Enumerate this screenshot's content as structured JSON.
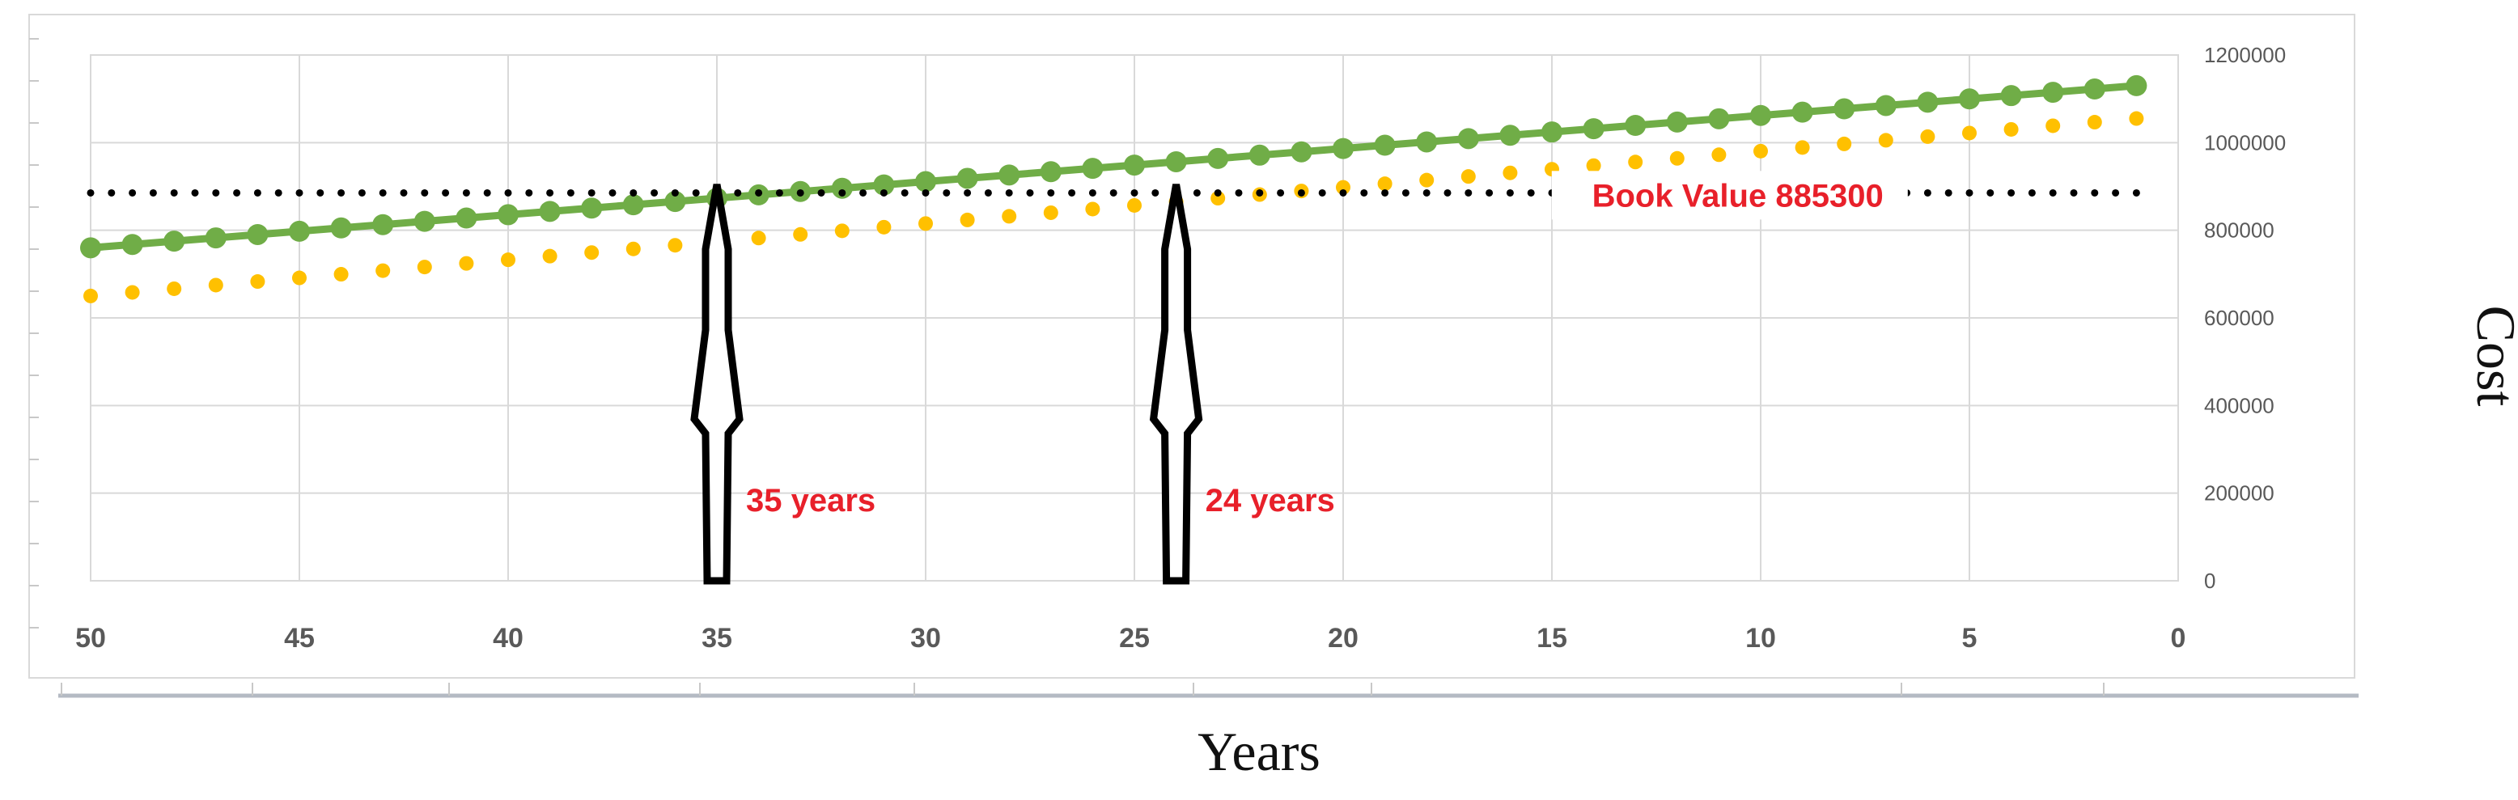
{
  "chart_data": {
    "type": "line",
    "title": "",
    "xlabel": "Years",
    "ylabel": "Cost",
    "x_reversed": true,
    "xlim": [
      50,
      0
    ],
    "ylim": [
      0,
      1200000
    ],
    "x_ticks": [
      50,
      45,
      40,
      35,
      30,
      25,
      20,
      15,
      10,
      5,
      0
    ],
    "y_ticks": [
      0,
      200000,
      400000,
      600000,
      800000,
      1000000,
      1200000
    ],
    "grid": true,
    "y_axis_side": "right",
    "series": [
      {
        "style": "solid line with circle markers",
        "color": "#70ad47",
        "x_start": 50,
        "x_end": 1,
        "y_start": 760000,
        "y_end": 1130000
      },
      {
        "style": "dotted markers",
        "color": "#ffc000",
        "x_start": 50,
        "x_end": 1,
        "y_start": 650000,
        "y_end": 1055000
      },
      {
        "style": "dotted horizontal line",
        "color": "#000000",
        "x_start": 50,
        "x_end": 1,
        "y_value": 885300
      }
    ],
    "annotations": [
      {
        "text": "Book Value 885300",
        "x": 7,
        "y": 880000
      },
      {
        "text": "35 years",
        "x": 35
      },
      {
        "text": "24 years",
        "x": 24
      }
    ],
    "arrows": [
      {
        "x": 35,
        "label_ref": "35 years"
      },
      {
        "x": 24,
        "label_ref": "24 years"
      }
    ]
  }
}
